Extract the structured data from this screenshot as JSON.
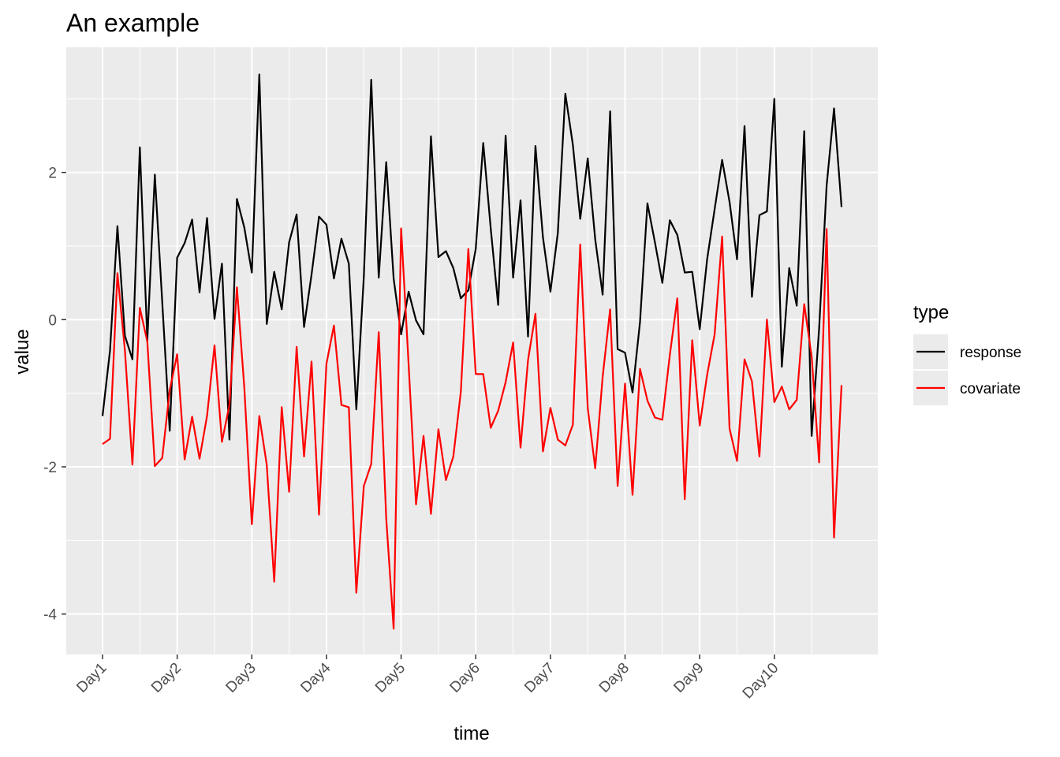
{
  "chart_data": {
    "type": "line",
    "title": "An example",
    "xlabel": "time",
    "ylabel": "value",
    "x_tick_labels": [
      "Day1",
      "Day2",
      "Day3",
      "Day4",
      "Day5",
      "Day6",
      "Day7",
      "Day8",
      "Day9",
      "Day10"
    ],
    "y_ticks": [
      -4,
      -2,
      0,
      2
    ],
    "ylim": [
      -4.55,
      3.7
    ],
    "grid": true,
    "legend": {
      "title": "type",
      "position": "right"
    },
    "series": [
      {
        "name": "response",
        "color": "#000000",
        "values": [
          -1.31,
          -0.42,
          1.27,
          -0.22,
          -0.54,
          2.34,
          -0.28,
          1.97,
          0.24,
          -1.51,
          0.84,
          1.04,
          1.36,
          0.37,
          1.38,
          0.01,
          0.76,
          -1.63,
          1.64,
          1.25,
          0.64,
          3.33,
          -0.06,
          0.65,
          0.14,
          1.05,
          1.43,
          -0.1,
          0.61,
          1.4,
          1.29,
          0.56,
          1.1,
          0.76,
          -1.22,
          0.58,
          3.26,
          0.57,
          2.14,
          0.56,
          -0.2,
          0.38,
          -0.01,
          -0.2,
          2.49,
          0.85,
          0.93,
          0.7,
          0.29,
          0.4,
          0.96,
          2.4,
          1.24,
          0.2,
          2.5,
          0.57,
          1.62,
          -0.23,
          2.36,
          1.12,
          0.38,
          1.18,
          3.07,
          2.38,
          1.37,
          2.19,
          1.09,
          0.34,
          2.83,
          -0.4,
          -0.45,
          -0.99,
          -0.03,
          1.58,
          1.05,
          0.5,
          1.35,
          1.15,
          0.64,
          0.65,
          -0.13,
          0.82,
          1.5,
          2.17,
          1.6,
          0.82,
          2.63,
          0.31,
          1.42,
          1.47,
          3.0,
          -0.64,
          0.7,
          0.19,
          2.56,
          -1.58,
          -0.12,
          1.82,
          2.87,
          1.53
        ]
      },
      {
        "name": "covariate",
        "color": "#ff0000",
        "values": [
          -1.69,
          -1.62,
          0.63,
          -0.42,
          -1.97,
          0.16,
          -0.3,
          -1.99,
          -1.88,
          -0.96,
          -0.47,
          -1.9,
          -1.32,
          -1.89,
          -1.31,
          -0.35,
          -1.66,
          -1.16,
          0.44,
          -0.93,
          -2.78,
          -1.31,
          -1.97,
          -3.56,
          -1.19,
          -2.34,
          -0.37,
          -1.86,
          -0.57,
          -2.65,
          -0.6,
          -0.08,
          -1.16,
          -1.19,
          -3.71,
          -2.26,
          -1.96,
          -0.17,
          -2.7,
          -4.2,
          1.24,
          -0.61,
          -2.51,
          -1.58,
          -2.64,
          -1.49,
          -2.18,
          -1.86,
          -0.98,
          0.96,
          -0.74,
          -0.74,
          -1.47,
          -1.24,
          -0.85,
          -0.31,
          -1.74,
          -0.55,
          0.08,
          -1.79,
          -1.2,
          -1.63,
          -1.71,
          -1.43,
          1.02,
          -1.2,
          -2.02,
          -0.78,
          0.14,
          -2.26,
          -0.87,
          -2.38,
          -0.67,
          -1.1,
          -1.33,
          -1.36,
          -0.48,
          0.29,
          -2.44,
          -0.28,
          -1.44,
          -0.75,
          -0.2,
          1.13,
          -1.48,
          -1.92,
          -0.54,
          -0.84,
          -1.86,
          0.0,
          -1.12,
          -0.91,
          -1.22,
          -1.09,
          0.21,
          -0.5,
          -1.94,
          1.23,
          -2.96,
          -0.89
        ]
      }
    ]
  }
}
